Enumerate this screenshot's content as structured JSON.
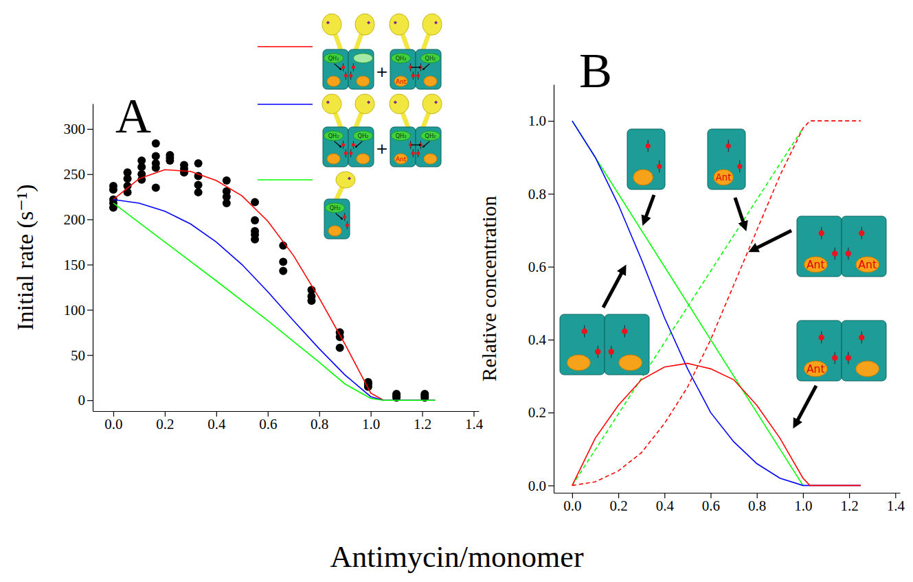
{
  "icon_labels": {
    "substrate": "QH₂",
    "inhibitor": "Ant",
    "plus": "+"
  },
  "chart_data": [
    {
      "type": "scatter",
      "title": "A",
      "xlabel": "Antimycin/monomer",
      "ylabel": "Initial rate (s⁻¹)",
      "xlim": [
        -0.08,
        1.42
      ],
      "ylim": [
        -12,
        328
      ],
      "xticks": [
        {
          "value": 0,
          "label": "0.0"
        },
        0.2,
        0.4,
        0.6,
        0.8,
        {
          "value": 1,
          "label": "1.0"
        },
        1.2,
        1.4
      ],
      "yticks": [
        0,
        50,
        100,
        150,
        200,
        250,
        300
      ],
      "legend": "top",
      "series": [
        {
          "type": "scatter",
          "color": "#000000",
          "marker": "circle",
          "x": [
            0,
            0,
            0,
            0,
            0,
            0.055,
            0.055,
            0.055,
            0.055,
            0.11,
            0.11,
            0.11,
            0.11,
            0.165,
            0.165,
            0.165,
            0.165,
            0.165,
            0.22,
            0.22,
            0.22,
            0.275,
            0.275,
            0.275,
            0.33,
            0.33,
            0.33,
            0.33,
            0.44,
            0.44,
            0.44,
            0.44,
            0.55,
            0.55,
            0.55,
            0.55,
            0.55,
            0.66,
            0.66,
            0.66,
            0.77,
            0.77,
            0.77,
            0.88,
            0.88,
            0.88,
            0.99,
            0.99,
            0.99,
            1.1,
            1.1,
            1.1,
            1.21,
            1.21,
            1.21
          ],
          "values": [
            213,
            218,
            222,
            233,
            237,
            230,
            237,
            245,
            252,
            244,
            250,
            258,
            265,
            235,
            257,
            262,
            270,
            284,
            265,
            268,
            271,
            252,
            256,
            260,
            230,
            238,
            248,
            262,
            218,
            225,
            231,
            243,
            178,
            183,
            187,
            199,
            219,
            143,
            153,
            171,
            110,
            115,
            122,
            58,
            70,
            75,
            15,
            18,
            20,
            3,
            5,
            7,
            3,
            5,
            7
          ]
        },
        {
          "type": "line",
          "color": "#ff0000",
          "line_style": "solid",
          "x": [
            0,
            0.1,
            0.2,
            0.3,
            0.4,
            0.5,
            0.6,
            0.7,
            0.8,
            0.9,
            0.95,
            1.0,
            1.05,
            1.25
          ],
          "values": [
            222,
            245,
            255,
            253,
            243,
            226,
            198,
            160,
            113,
            62,
            35,
            8,
            0,
            0
          ]
        },
        {
          "type": "line",
          "color": "#0000ff",
          "line_style": "solid",
          "x": [
            0,
            0.1,
            0.2,
            0.3,
            0.4,
            0.5,
            0.6,
            0.7,
            0.8,
            0.9,
            1.0,
            1.05,
            1.25
          ],
          "values": [
            222,
            218,
            209,
            195,
            175,
            150,
            120,
            88,
            57,
            28,
            4,
            0,
            0
          ]
        },
        {
          "type": "line",
          "color": "#00ff00",
          "line_style": "solid",
          "x": [
            0,
            0.2,
            0.4,
            0.6,
            0.8,
            0.9,
            1.0,
            1.05,
            1.25
          ],
          "values": [
            218,
            175,
            132,
            88,
            42,
            18,
            2,
            0,
            0
          ]
        }
      ]
    },
    {
      "type": "line",
      "title": "B",
      "ylabel": "Relative concentration",
      "xlim": [
        -0.08,
        1.42
      ],
      "ylim": [
        -0.02,
        1.1
      ],
      "xticks": [
        {
          "value": 0,
          "label": "0.0"
        },
        0.2,
        0.4,
        0.6,
        0.8,
        {
          "value": 1,
          "label": "1.0"
        },
        1.2,
        1.4
      ],
      "yticks": [
        {
          "value": 0,
          "label": "0.0"
        },
        0.2,
        0.4,
        0.6,
        0.8,
        {
          "value": 1,
          "label": "1.0"
        }
      ],
      "series": [
        {
          "color": "#00ff00",
          "line_style": "solid",
          "x": [
            0,
            1.0
          ],
          "values": [
            1,
            0
          ]
        },
        {
          "color": "#00ff00",
          "line_style": "dashed",
          "x": [
            0,
            1.0
          ],
          "values": [
            0,
            0.98
          ]
        },
        {
          "color": "#0000ff",
          "line_style": "solid",
          "x": [
            0,
            0.1,
            0.2,
            0.3,
            0.4,
            0.5,
            0.6,
            0.7,
            0.8,
            0.9,
            1.0,
            1.25
          ],
          "values": [
            1,
            0.9,
            0.77,
            0.62,
            0.46,
            0.32,
            0.2,
            0.12,
            0.06,
            0.02,
            0,
            0
          ]
        },
        {
          "color": "#ff0000",
          "line_style": "solid",
          "x": [
            0,
            0.1,
            0.2,
            0.3,
            0.4,
            0.5,
            0.6,
            0.7,
            0.8,
            0.9,
            1.0,
            1.03,
            1.25
          ],
          "values": [
            0,
            0.13,
            0.22,
            0.29,
            0.325,
            0.335,
            0.32,
            0.29,
            0.22,
            0.13,
            0.02,
            0,
            0
          ]
        },
        {
          "color": "#ff0000",
          "line_style": "dashed",
          "x": [
            0,
            0.1,
            0.2,
            0.3,
            0.4,
            0.5,
            0.6,
            0.7,
            0.8,
            0.9,
            1.0,
            1.03,
            1.25
          ],
          "values": [
            0,
            0.01,
            0.04,
            0.09,
            0.17,
            0.27,
            0.4,
            0.55,
            0.7,
            0.85,
            0.98,
            1.0,
            1.0
          ]
        }
      ]
    }
  ]
}
